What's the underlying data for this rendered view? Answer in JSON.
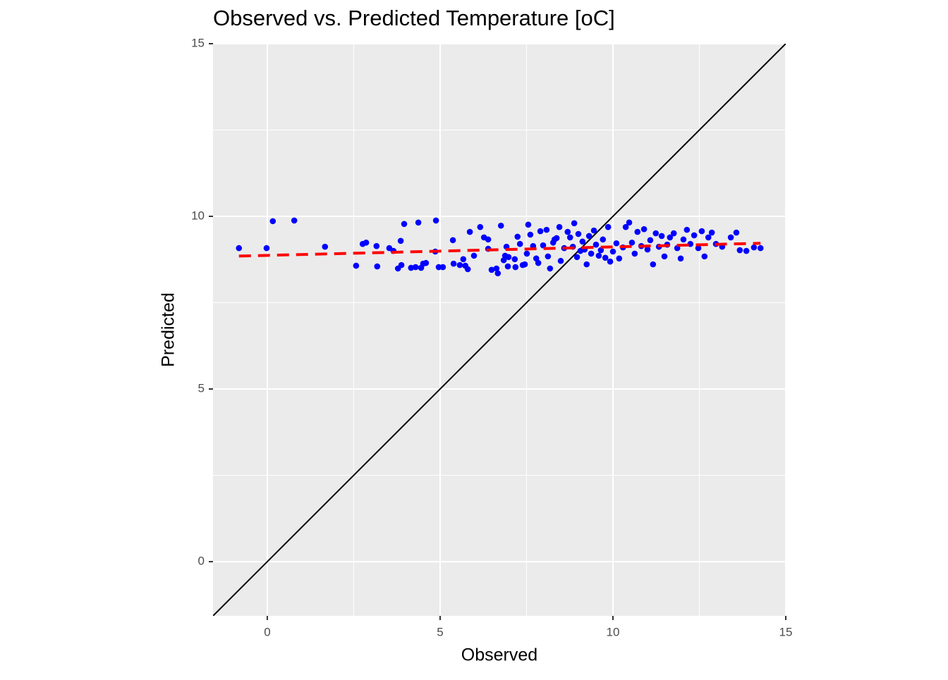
{
  "chart_data": {
    "type": "scatter",
    "title": "Observed vs. Predicted Temperature [oC]",
    "x_label": "Observed",
    "y_label": "Predicted",
    "xlim": [
      -1.57,
      15
    ],
    "ylim": [
      -1.57,
      15
    ],
    "xticks": [
      0,
      5,
      10,
      15
    ],
    "yticks": [
      0,
      5,
      10,
      15
    ],
    "minor_breaks": [
      2.5,
      7.5,
      12.5
    ],
    "grid": true,
    "x": [
      -0.82,
      -0.02,
      0.16,
      0.78,
      1.67,
      2.57,
      2.76,
      2.86,
      3.16,
      3.18,
      3.53,
      3.65,
      3.78,
      3.86,
      3.88,
      3.96,
      4.16,
      4.29,
      4.37,
      4.45,
      4.51,
      4.59,
      4.86,
      4.88,
      4.96,
      5.08,
      5.37,
      5.39,
      5.57,
      5.67,
      5.73,
      5.8,
      5.86,
      5.98,
      6.16,
      6.27,
      6.39,
      6.39,
      6.49,
      6.63,
      6.67,
      6.76,
      6.84,
      6.88,
      6.92,
      6.96,
      6.98,
      7.16,
      7.18,
      7.24,
      7.31,
      7.39,
      7.45,
      7.51,
      7.55,
      7.61,
      7.69,
      7.78,
      7.84,
      7.9,
      7.98,
      8.08,
      8.12,
      8.18,
      8.27,
      8.31,
      8.37,
      8.45,
      8.49,
      8.59,
      8.69,
      8.76,
      8.84,
      8.88,
      8.96,
      9.0,
      9.06,
      9.12,
      9.18,
      9.24,
      9.31,
      9.37,
      9.45,
      9.51,
      9.59,
      9.65,
      9.71,
      9.78,
      9.86,
      9.92,
      10.0,
      10.1,
      10.18,
      10.29,
      10.37,
      10.47,
      10.55,
      10.63,
      10.71,
      10.82,
      10.9,
      11.0,
      11.08,
      11.16,
      11.24,
      11.33,
      11.41,
      11.49,
      11.57,
      11.65,
      11.76,
      11.86,
      11.96,
      12.04,
      12.14,
      12.24,
      12.35,
      12.47,
      12.57,
      12.65,
      12.76,
      12.86,
      12.98,
      13.16,
      13.41,
      13.57,
      13.67,
      13.86,
      14.08,
      14.27
    ],
    "series": [
      {
        "color": "#0000ff",
        "values": [
          9.08,
          9.08,
          9.86,
          9.88,
          9.12,
          8.57,
          9.2,
          9.24,
          9.14,
          8.55,
          9.08,
          9.0,
          8.49,
          9.29,
          8.59,
          9.78,
          8.51,
          8.53,
          9.82,
          8.51,
          8.63,
          8.65,
          8.98,
          9.88,
          8.53,
          8.53,
          9.31,
          8.63,
          8.59,
          8.76,
          8.57,
          8.47,
          9.55,
          8.86,
          9.69,
          9.39,
          9.06,
          9.33,
          8.45,
          8.49,
          8.35,
          9.73,
          8.73,
          8.86,
          9.12,
          8.55,
          8.82,
          8.76,
          8.53,
          9.41,
          9.2,
          8.59,
          8.61,
          8.92,
          9.76,
          9.47,
          9.14,
          8.78,
          8.65,
          9.57,
          9.16,
          9.61,
          8.84,
          8.49,
          9.24,
          9.33,
          9.37,
          9.69,
          8.71,
          9.08,
          9.55,
          9.39,
          9.12,
          9.8,
          8.82,
          9.49,
          9.0,
          9.27,
          9.04,
          8.61,
          9.43,
          8.92,
          9.59,
          9.18,
          8.86,
          9.02,
          9.33,
          8.8,
          9.69,
          8.69,
          8.98,
          9.22,
          8.78,
          9.1,
          9.69,
          9.82,
          9.24,
          8.92,
          9.55,
          9.14,
          9.63,
          9.04,
          9.31,
          8.61,
          9.51,
          9.12,
          9.43,
          8.84,
          9.18,
          9.39,
          9.51,
          9.08,
          8.78,
          9.33,
          9.61,
          9.2,
          9.45,
          9.08,
          9.57,
          8.84,
          9.39,
          9.53,
          9.2,
          9.12,
          9.39,
          9.53,
          9.02,
          9.0,
          9.1,
          9.08
        ]
      }
    ],
    "fit_line": {
      "color": "#ff0000",
      "dashed": true,
      "x": [
        -0.82,
        14.27
      ],
      "y": [
        8.85,
        9.22
      ]
    },
    "identity_line": {
      "color": "#000000",
      "dashed": false,
      "x": [
        -1.57,
        15
      ],
      "y": [
        -1.57,
        15
      ]
    }
  }
}
